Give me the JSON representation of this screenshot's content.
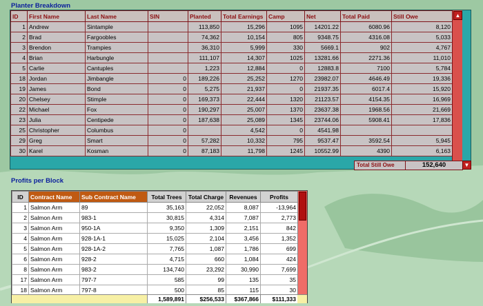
{
  "planter": {
    "title": "Planter Breakdown",
    "columns": [
      "ID",
      "First Name",
      "Last Name",
      "SIN",
      "Planted",
      "Total Earnings",
      "Camp",
      "Net",
      "Total Paid",
      "Still Owe"
    ],
    "rows": [
      [
        "1",
        "Andrew",
        "Sintample",
        "",
        "113,850",
        "15,296",
        "1095",
        "14201.22",
        "6080.96",
        "8,120"
      ],
      [
        "2",
        "Brad",
        "Fargoobles",
        "",
        "74,362",
        "10,154",
        "805",
        "9348.75",
        "4316.08",
        "5,033"
      ],
      [
        "3",
        "Brendon",
        "Trampies",
        "",
        "36,310",
        "5,999",
        "330",
        "5669.1",
        "902",
        "4,767"
      ],
      [
        "4",
        "Brian",
        "Harbungle",
        "",
        "111,107",
        "14,307",
        "1025",
        "13281.66",
        "2271.36",
        "11,010"
      ],
      [
        "5",
        "Carlie",
        "Cantuples",
        "",
        "1,223",
        "12,884",
        "0",
        "12883.8",
        "7100",
        "5,784"
      ],
      [
        "18",
        "Jordan",
        "Jimbangle",
        "0",
        "189,226",
        "25,252",
        "1270",
        "23982.07",
        "4646.49",
        "19,336"
      ],
      [
        "19",
        "James",
        "Bond",
        "0",
        "5,275",
        "21,937",
        "0",
        "21937.35",
        "6017.4",
        "15,920"
      ],
      [
        "20",
        "Chelsey",
        "Stimple",
        "0",
        "169,373",
        "22,444",
        "1320",
        "21123.57",
        "4154.35",
        "16,969"
      ],
      [
        "22",
        "Michael",
        "Fox",
        "0",
        "190,297",
        "25,007",
        "1370",
        "23637.38",
        "1968.56",
        "21,669"
      ],
      [
        "23",
        "Julia",
        "Centipede",
        "0",
        "187,638",
        "25,089",
        "1345",
        "23744.06",
        "5908.41",
        "17,836"
      ],
      [
        "25",
        "Christopher",
        "Columbus",
        "0",
        "",
        "4,542",
        "0",
        "4541.98",
        "",
        ""
      ],
      [
        "29",
        "Greg",
        "Smart",
        "0",
        "57,282",
        "10,332",
        "795",
        "9537.47",
        "3592.54",
        "5,945"
      ],
      [
        "30",
        "Karel",
        "Kosman",
        "0",
        "87,183",
        "11,798",
        "1245",
        "10552.99",
        "4390",
        "6,163"
      ]
    ],
    "total_label": "Total Still Owe",
    "total_value": "152,640"
  },
  "profits": {
    "title": "Profits per Block",
    "columns": [
      "ID",
      "Contract Name",
      "Sub Contract Name",
      "Total Trees",
      "Total Charge",
      "Revenues",
      "Profits"
    ],
    "rows": [
      [
        "1",
        "Salmon Arm",
        "89",
        "35,163",
        "22,052",
        "8,087",
        "-13,964"
      ],
      [
        "2",
        "Salmon Arm",
        "983-1",
        "30,815",
        "4,314",
        "7,087",
        "2,773"
      ],
      [
        "3",
        "Salmon Arm",
        "950-1A",
        "9,350",
        "1,309",
        "2,151",
        "842"
      ],
      [
        "4",
        "Salmon Arm",
        "928-1A-1",
        "15,025",
        "2,104",
        "3,456",
        "1,352"
      ],
      [
        "5",
        "Salmon Arm",
        "928-1A-2",
        "7,765",
        "1,087",
        "1,786",
        "699"
      ],
      [
        "6",
        "Salmon Arm",
        "928-2",
        "4,715",
        "660",
        "1,084",
        "424"
      ],
      [
        "8",
        "Salmon Arm",
        "983-2",
        "134,740",
        "23,292",
        "30,990",
        "7,699"
      ],
      [
        "17",
        "Salmon Arm",
        "797-7",
        "585",
        "99",
        "135",
        "35"
      ],
      [
        "18",
        "Salmon Arm",
        "797-8",
        "500",
        "85",
        "115",
        "30"
      ]
    ],
    "totals": [
      "1,589,891",
      "$256,533",
      "$367,866",
      "$111,333"
    ]
  },
  "icons": {
    "scroll_up": "scroll-up-arrow-icon",
    "scroll_down": "scroll-down-arrow-icon"
  },
  "colors": {
    "planter_header_text": "#8c0f12",
    "title_text": "#0a1e9c",
    "teal_frame": "#2aa7a8",
    "profits_header_highlight": "#c05a12",
    "totals_bar": "#f7f0a5"
  }
}
